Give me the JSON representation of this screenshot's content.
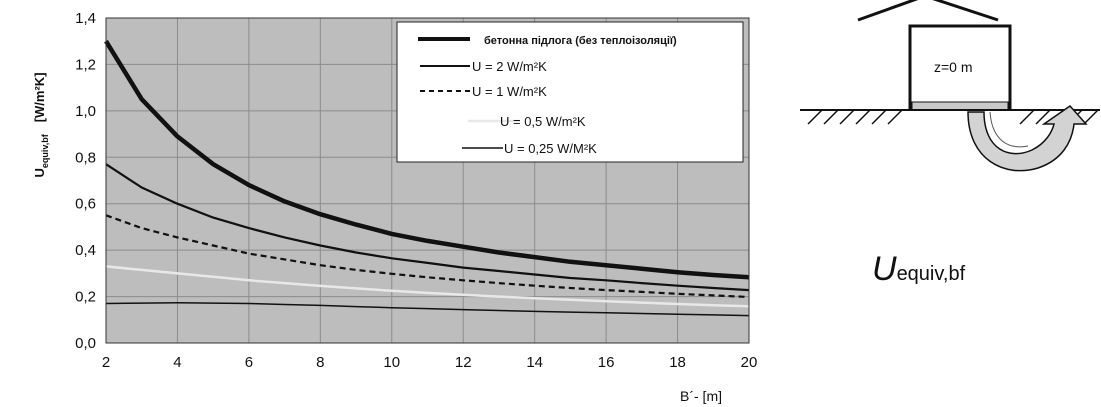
{
  "chart_data": {
    "type": "line",
    "xlabel": "B´-  [m]",
    "ylabel": {
      "main": "U",
      "sub": "equiv,bf",
      "unit": "[W/m²K]"
    },
    "xlim": [
      2,
      20
    ],
    "ylim": [
      0.0,
      1.4
    ],
    "xticks": [
      "2",
      "4",
      "6",
      "8",
      "10",
      "12",
      "14",
      "16",
      "18",
      "20"
    ],
    "yticks": [
      "0,0",
      "0,2",
      "0,4",
      "0,6",
      "0,8",
      "1,0",
      "1,2",
      "1,4"
    ],
    "grid": true,
    "legend_position": "top-right",
    "colors": {
      "plot_bg": "#bdbdbd",
      "grid": "#8c8c8c",
      "light_curve": "#e8e8e8"
    },
    "series": [
      {
        "name": "бетонна підлога (без теплоізоляції)",
        "x": [
          2,
          3,
          4,
          5,
          6,
          7,
          8,
          9,
          10,
          11,
          12,
          13,
          14,
          15,
          16,
          17,
          18,
          19,
          20
        ],
        "values": [
          1.3,
          1.05,
          0.89,
          0.77,
          0.68,
          0.61,
          0.555,
          0.51,
          0.47,
          0.44,
          0.415,
          0.39,
          0.37,
          0.35,
          0.335,
          0.32,
          0.305,
          0.293,
          0.283
        ]
      },
      {
        "name": "U = 2 W/m²K",
        "x": [
          2,
          3,
          4,
          5,
          6,
          7,
          8,
          9,
          10,
          11,
          12,
          13,
          14,
          15,
          16,
          17,
          18,
          19,
          20
        ],
        "values": [
          0.77,
          0.67,
          0.6,
          0.54,
          0.495,
          0.455,
          0.42,
          0.39,
          0.365,
          0.345,
          0.325,
          0.31,
          0.295,
          0.28,
          0.27,
          0.258,
          0.247,
          0.237,
          0.228
        ]
      },
      {
        "name": "U = 1 W/m²K",
        "x": [
          2,
          3,
          4,
          5,
          6,
          7,
          8,
          9,
          10,
          11,
          12,
          13,
          14,
          15,
          16,
          17,
          18,
          19,
          20
        ],
        "values": [
          0.55,
          0.495,
          0.455,
          0.42,
          0.385,
          0.36,
          0.335,
          0.315,
          0.298,
          0.283,
          0.27,
          0.258,
          0.247,
          0.237,
          0.228,
          0.22,
          0.212,
          0.205,
          0.198
        ]
      },
      {
        "name": "U = 0,5 W/m²K",
        "x": [
          2,
          3,
          4,
          5,
          6,
          7,
          8,
          9,
          10,
          11,
          12,
          13,
          14,
          15,
          16,
          17,
          18,
          19,
          20
        ],
        "values": [
          0.33,
          0.315,
          0.3,
          0.285,
          0.27,
          0.258,
          0.246,
          0.235,
          0.225,
          0.216,
          0.208,
          0.2,
          0.193,
          0.186,
          0.18,
          0.174,
          0.168,
          0.163,
          0.158
        ]
      },
      {
        "name": "U = 0,25 W/M²K",
        "x": [
          2,
          3,
          4,
          5,
          6,
          7,
          8,
          9,
          10,
          11,
          12,
          13,
          14,
          15,
          16,
          17,
          18,
          19,
          20
        ],
        "values": [
          0.17,
          0.172,
          0.173,
          0.172,
          0.17,
          0.166,
          0.162,
          0.157,
          0.152,
          0.148,
          0.144,
          0.14,
          0.136,
          0.133,
          0.13,
          0.127,
          0.124,
          0.121,
          0.118
        ]
      }
    ]
  },
  "diagram": {
    "label": "z=0 m",
    "symbol_main": "U",
    "symbol_sub": "equiv,bf"
  }
}
